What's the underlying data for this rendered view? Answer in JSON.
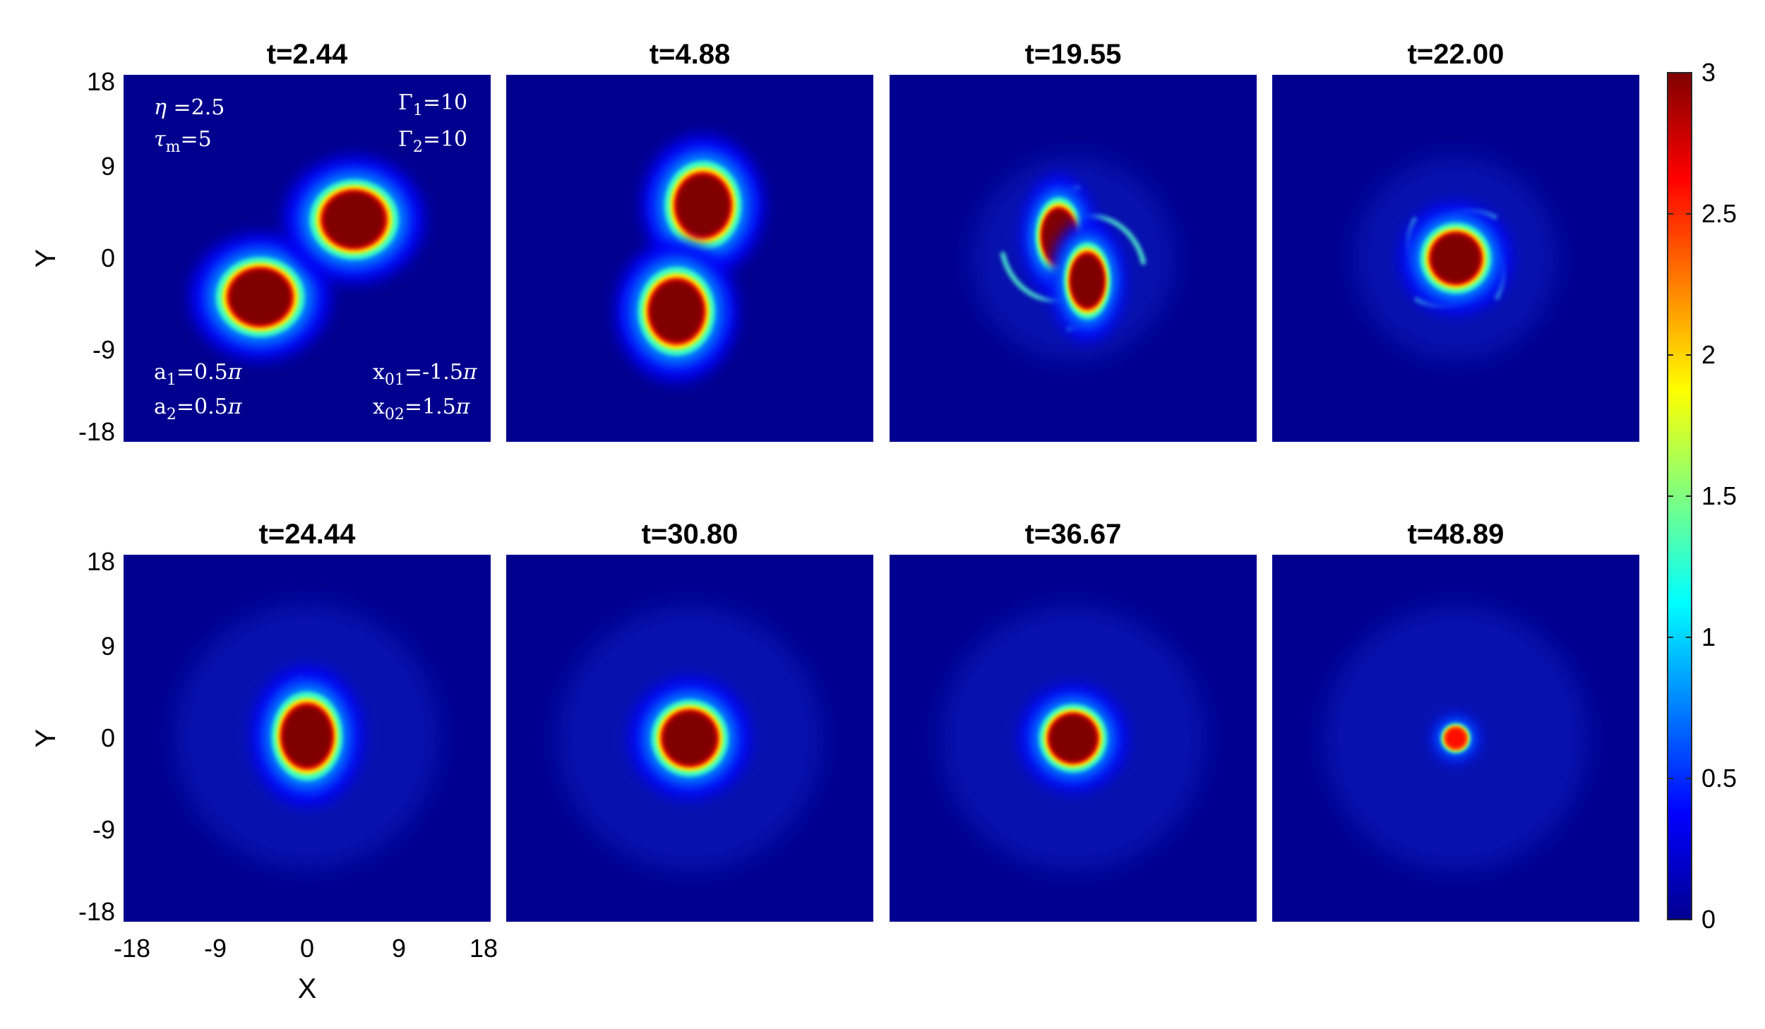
{
  "chart_data": {
    "type": "heatmap",
    "xlabel": "X",
    "ylabel": "Y",
    "xlim": [
      -18,
      18
    ],
    "ylim": [
      -18,
      18
    ],
    "xticks": [
      "-18",
      "-9",
      "0",
      "9",
      "18"
    ],
    "yticks": [
      "18",
      "9",
      "0",
      "-9",
      "-18"
    ],
    "colorbar": {
      "min": 0,
      "max": 3,
      "ticks": [
        "3",
        "2.5",
        "2",
        "1.5",
        "1",
        "0.5",
        "0"
      ],
      "colormap": "jet"
    },
    "annotations": {
      "eta": "=2.5",
      "tau_m": "=5",
      "gamma1": "=10",
      "gamma2": "=10",
      "a1": "=0.5",
      "a2": "=0.5",
      "x01": "=-1.5",
      "x02": "=1.5"
    },
    "panels": [
      {
        "title": "t=2.44",
        "state": "two separated vortex cores with rings",
        "blobs": [
          {
            "x": -4.6,
            "y": -3.8,
            "rx": 3.0,
            "ry": 2.7,
            "peak": 3.0
          },
          {
            "x": 4.6,
            "y": 3.8,
            "rx": 3.0,
            "ry": 2.7,
            "peak": 3.0
          }
        ]
      },
      {
        "title": "t=4.88",
        "state": "two vortex cores rotating",
        "blobs": [
          {
            "x": 1.3,
            "y": 5.2,
            "rx": 2.6,
            "ry": 3.0,
            "peak": 3.0
          },
          {
            "x": -1.3,
            "y": -5.2,
            "rx": 2.6,
            "ry": 3.0,
            "peak": 3.0
          }
        ]
      },
      {
        "title": "t=19.55",
        "state": "cores merging with spiral arms",
        "blobs": [
          {
            "x": -1.4,
            "y": 2.2,
            "rx": 1.6,
            "ry": 2.6,
            "peak": 3.0
          },
          {
            "x": 1.4,
            "y": -2.2,
            "rx": 1.6,
            "ry": 2.6,
            "peak": 3.0
          }
        ]
      },
      {
        "title": "t=22.00",
        "state": "merged core with spiral arms",
        "blobs": [
          {
            "x": 0,
            "y": 0,
            "rx": 2.4,
            "ry": 2.4,
            "peak": 3.0
          }
        ]
      },
      {
        "title": "t=24.44",
        "state": "single core with weak spiral",
        "blobs": [
          {
            "x": 0,
            "y": 0.2,
            "rx": 2.4,
            "ry": 3.0,
            "peak": 3.0
          }
        ]
      },
      {
        "title": "t=30.80",
        "state": "axisymmetric core",
        "blobs": [
          {
            "x": 0,
            "y": 0,
            "rx": 2.6,
            "ry": 2.6,
            "peak": 3.0
          }
        ]
      },
      {
        "title": "t=36.67",
        "state": "axisymmetric core decaying",
        "blobs": [
          {
            "x": 0,
            "y": 0,
            "rx": 2.3,
            "ry": 2.3,
            "peak": 3.0
          }
        ]
      },
      {
        "title": "t=48.89",
        "state": "decayed core",
        "blobs": [
          {
            "x": 0,
            "y": 0,
            "rx": 1.0,
            "ry": 1.0,
            "peak": 2.6
          }
        ]
      }
    ]
  }
}
